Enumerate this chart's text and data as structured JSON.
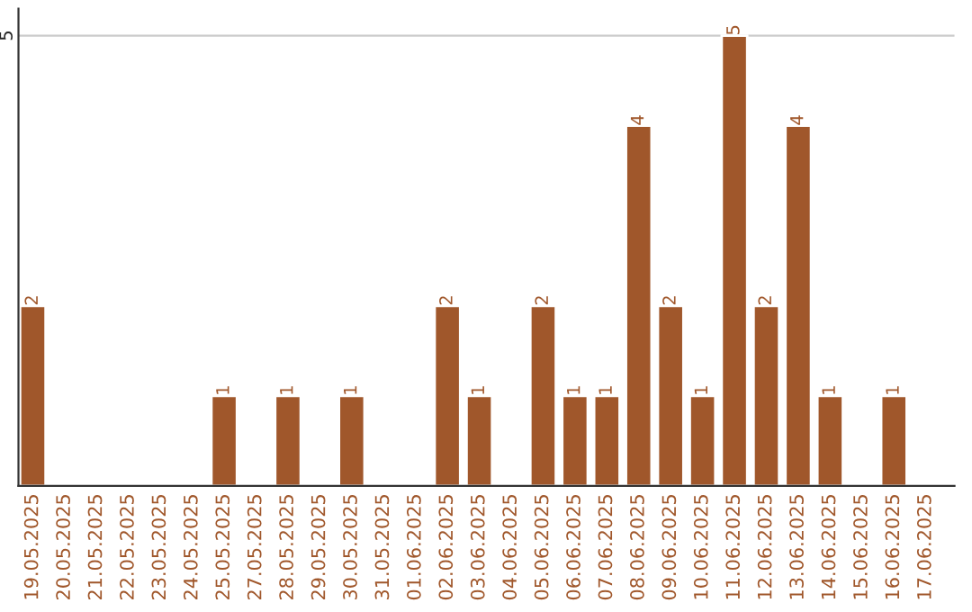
{
  "chart_data": {
    "type": "bar",
    "categories": [
      "19.05.2025",
      "20.05.2025",
      "21.05.2025",
      "22.05.2025",
      "23.05.2025",
      "24.05.2025",
      "25.05.2025",
      "27.05.2025",
      "28.05.2025",
      "29.05.2025",
      "30.05.2025",
      "31.05.2025",
      "01.06.2025",
      "02.06.2025",
      "03.06.2025",
      "04.06.2025",
      "05.06.2025",
      "06.06.2025",
      "07.06.2025",
      "08.06.2025",
      "09.06.2025",
      "10.06.2025",
      "11.06.2025",
      "12.06.2025",
      "13.06.2025",
      "14.06.2025",
      "15.06.2025",
      "16.06.2025",
      "17.06.2025"
    ],
    "values": [
      2,
      null,
      null,
      null,
      null,
      null,
      1,
      null,
      1,
      null,
      1,
      null,
      null,
      2,
      1,
      null,
      2,
      1,
      1,
      4,
      2,
      1,
      5,
      2,
      4,
      1,
      null,
      1,
      null
    ],
    "value_labels": [
      "2",
      null,
      null,
      null,
      null,
      null,
      "1",
      null,
      "1",
      null,
      "1",
      null,
      null,
      "2",
      "1",
      null,
      "2",
      "1",
      "1",
      "4",
      "2",
      "1",
      "5",
      "2",
      "4",
      "1",
      null,
      "1",
      null
    ],
    "color": "#a0572b",
    "ylim": [
      0,
      5.3
    ],
    "yticks": [
      5
    ],
    "grid": "y"
  }
}
